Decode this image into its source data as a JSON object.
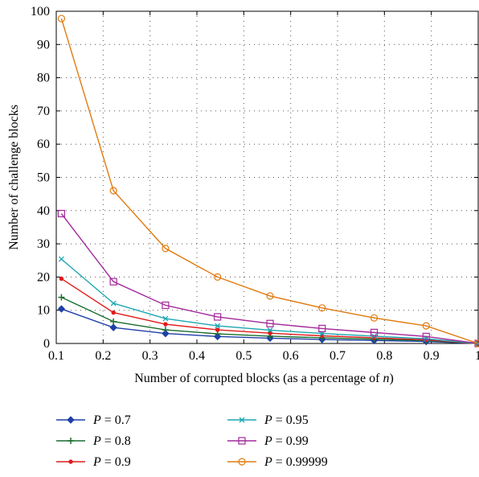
{
  "chart_data": {
    "type": "line",
    "xlabel": "Number of corrupted blocks (as a percentage of n)",
    "ylabel": "Number of challenge blocks",
    "xlim": [
      0.1,
      1
    ],
    "ylim": [
      0,
      100
    ],
    "xticks": [
      "0.1",
      "0.2",
      "0.3",
      "0.4",
      "0.5",
      "0.6",
      "0.7",
      "0.8",
      "0.9",
      "1"
    ],
    "yticks": [
      "0",
      "10",
      "20",
      "30",
      "40",
      "50",
      "60",
      "70",
      "80",
      "90",
      "100"
    ],
    "grid": true,
    "legend_position": "bottom",
    "x": [
      0.111,
      0.222,
      0.333,
      0.444,
      0.556,
      0.667,
      0.778,
      0.889,
      1.0
    ],
    "series": [
      {
        "name": "P = 0.7",
        "color": "#1f3fa8",
        "marker": "diamond",
        "values": [
          10.4,
          4.8,
          3.0,
          2.1,
          1.6,
          1.2,
          0.9,
          0.6,
          0.0
        ]
      },
      {
        "name": "P = 0.8",
        "color": "#1a6e2e",
        "marker": "plus",
        "values": [
          13.9,
          6.6,
          4.1,
          2.9,
          2.2,
          1.7,
          1.3,
          0.9,
          0.0
        ]
      },
      {
        "name": "P = 0.9",
        "color": "#e01b1b",
        "marker": "dot",
        "values": [
          19.5,
          9.3,
          5.8,
          4.1,
          3.1,
          2.3,
          1.7,
          1.1,
          0.0
        ]
      },
      {
        "name": "P = 0.95",
        "color": "#1aa6b0",
        "marker": "x",
        "values": [
          25.4,
          12.1,
          7.5,
          5.3,
          4.0,
          3.0,
          2.2,
          1.4,
          0.0
        ]
      },
      {
        "name": "P = 0.99",
        "color": "#a2289a",
        "marker": "square",
        "values": [
          39.1,
          18.6,
          11.5,
          8.0,
          6.0,
          4.5,
          3.3,
          2.1,
          0.0
        ]
      },
      {
        "name": "P = 0.99999",
        "color": "#e07a10",
        "marker": "circle",
        "values": [
          97.8,
          46.0,
          28.6,
          20.0,
          14.3,
          10.7,
          7.7,
          5.3,
          0.0
        ]
      }
    ]
  }
}
